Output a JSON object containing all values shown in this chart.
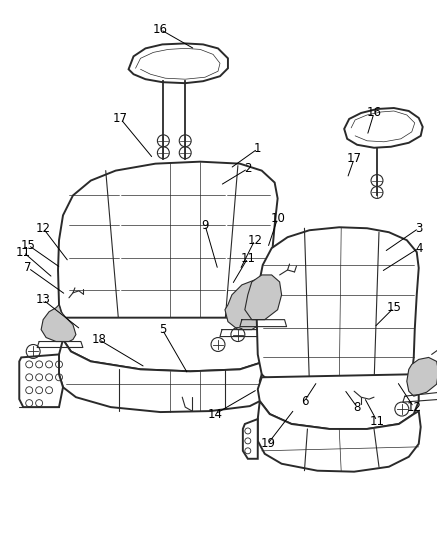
{
  "bg_color": "#ffffff",
  "line_color": "#2a2a2a",
  "label_color": "#000000",
  "figsize": [
    4.38,
    5.33
  ],
  "dpi": 100,
  "callouts": [
    [
      "16",
      160,
      28,
      195,
      48
    ],
    [
      "17",
      120,
      118,
      153,
      158
    ],
    [
      "1",
      258,
      148,
      230,
      168
    ],
    [
      "2",
      248,
      168,
      220,
      185
    ],
    [
      "7",
      27,
      268,
      65,
      295
    ],
    [
      "15",
      27,
      245,
      60,
      268
    ],
    [
      "12",
      42,
      228,
      68,
      262
    ],
    [
      "11",
      22,
      252,
      52,
      278
    ],
    [
      "13",
      42,
      300,
      80,
      330
    ],
    [
      "18",
      98,
      340,
      145,
      368
    ],
    [
      "5",
      162,
      330,
      188,
      375
    ],
    [
      "9",
      205,
      225,
      218,
      270
    ],
    [
      "10",
      278,
      218,
      268,
      248
    ],
    [
      "12",
      255,
      240,
      240,
      270
    ],
    [
      "11",
      248,
      258,
      232,
      285
    ],
    [
      "3",
      420,
      228,
      385,
      252
    ],
    [
      "4",
      420,
      248,
      382,
      272
    ],
    [
      "15",
      395,
      308,
      375,
      328
    ],
    [
      "8",
      358,
      408,
      345,
      390
    ],
    [
      "11",
      378,
      422,
      365,
      398
    ],
    [
      "12",
      415,
      408,
      398,
      382
    ],
    [
      "6",
      305,
      402,
      318,
      382
    ],
    [
      "14",
      215,
      415,
      258,
      390
    ],
    [
      "19",
      268,
      445,
      295,
      410
    ],
    [
      "16",
      375,
      112,
      368,
      135
    ],
    [
      "17",
      355,
      158,
      348,
      178
    ]
  ]
}
